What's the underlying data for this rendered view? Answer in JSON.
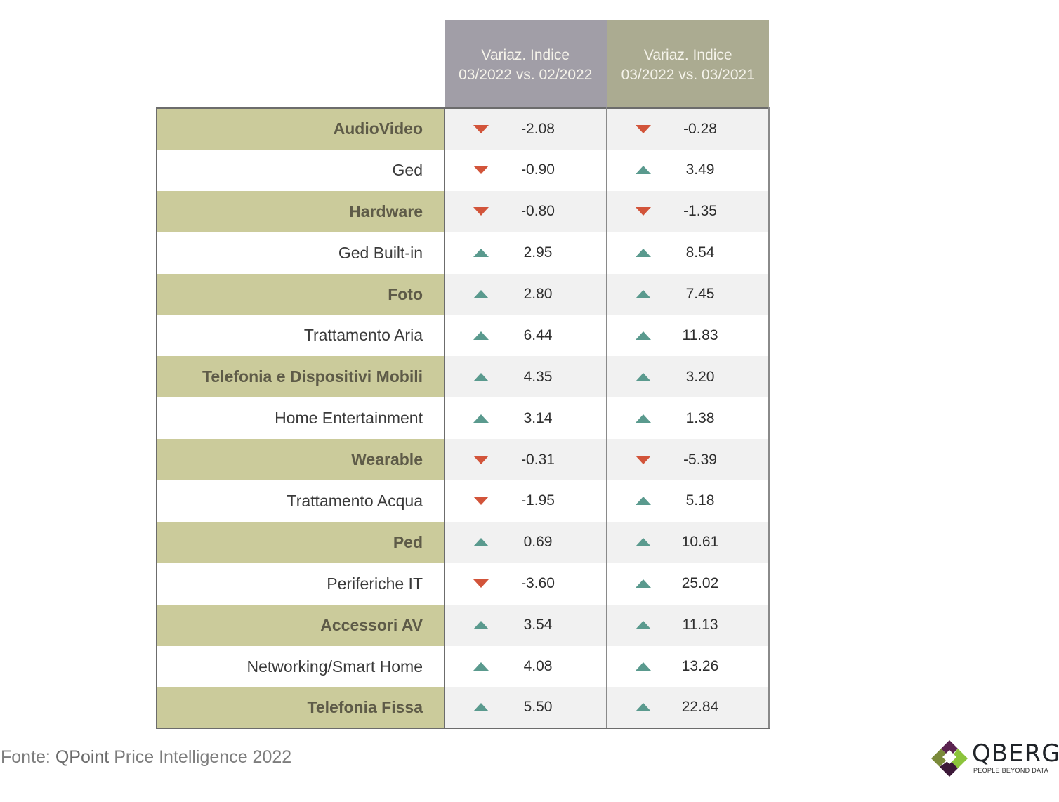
{
  "chart_data": {
    "type": "table",
    "columns": [
      "Variaz. Indice 03/2022 vs. 02/2022",
      "Variaz. Indice 03/2022 vs. 03/2021"
    ],
    "column_lines": [
      [
        "Variaz. Indice",
        "03/2022 vs. 02/2022"
      ],
      [
        "Variaz. Indice",
        "03/2022 vs. 03/2021"
      ]
    ],
    "rows": [
      {
        "category": "AudioVideo",
        "v1": "-2.08",
        "v2": "-0.28"
      },
      {
        "category": "Ged",
        "v1": "-0.90",
        "v2": "3.49"
      },
      {
        "category": "Hardware",
        "v1": "-0.80",
        "v2": "-1.35"
      },
      {
        "category": "Ged Built-in",
        "v1": "2.95",
        "v2": "8.54"
      },
      {
        "category": "Foto",
        "v1": "2.80",
        "v2": "7.45"
      },
      {
        "category": "Trattamento Aria",
        "v1": "6.44",
        "v2": "11.83"
      },
      {
        "category": "Telefonia e Dispositivi Mobili",
        "v1": "4.35",
        "v2": "3.20"
      },
      {
        "category": "Home Entertainment",
        "v1": "3.14",
        "v2": "1.38"
      },
      {
        "category": "Wearable",
        "v1": "-0.31",
        "v2": "-5.39"
      },
      {
        "category": "Trattamento Acqua",
        "v1": "-1.95",
        "v2": "5.18"
      },
      {
        "category": "Ped",
        "v1": "0.69",
        "v2": "10.61"
      },
      {
        "category": "Periferiche IT",
        "v1": "-3.60",
        "v2": "25.02"
      },
      {
        "category": "Accessori AV",
        "v1": "3.54",
        "v2": "11.13"
      },
      {
        "category": "Networking/Smart Home",
        "v1": "4.08",
        "v2": "13.26"
      },
      {
        "category": "Telefonia Fissa",
        "v1": "5.50",
        "v2": "22.84"
      }
    ]
  },
  "colors": {
    "up_arrow": "#5a9a8e",
    "down_arrow": "#d2543a",
    "header_col1": "#a19ea7",
    "header_col2": "#abab91",
    "category_band": "#cbcb9b"
  },
  "source": {
    "prefix": "Fonte: ",
    "name": "QPoint",
    "suffix": " Price Intelligence 2022"
  },
  "logo": {
    "word": "QBERG",
    "tagline": "PEOPLE BEYOND DATA",
    "icon": "qberg-diamond-logo-icon"
  }
}
